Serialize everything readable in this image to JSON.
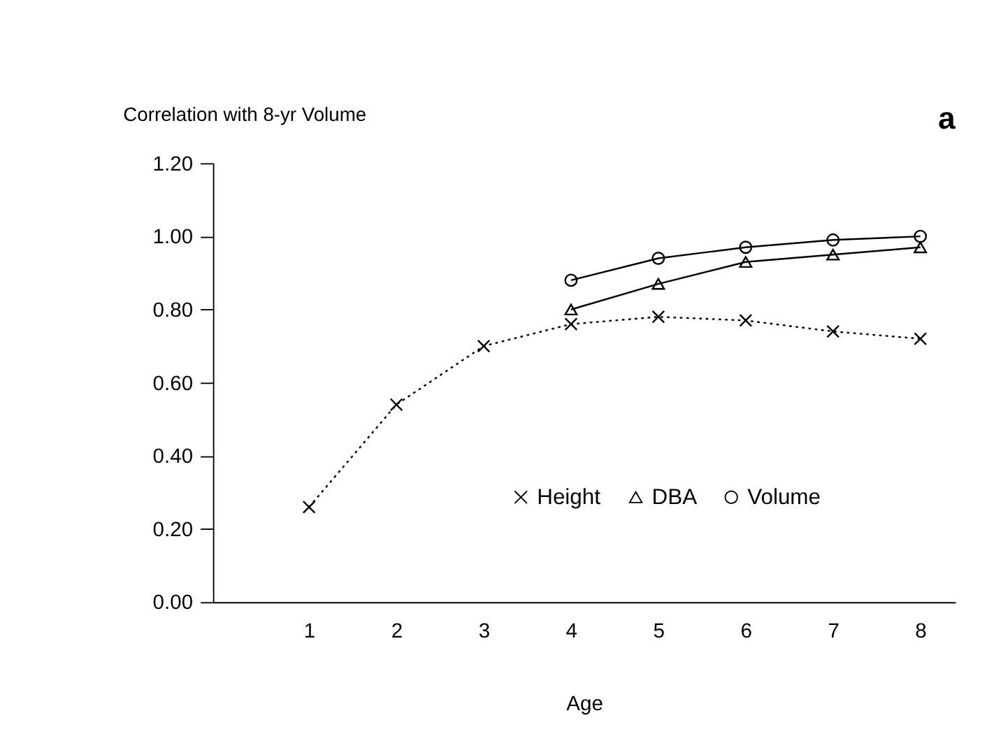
{
  "chart_data": {
    "type": "line",
    "ylabel": "Correlation with 8-yr Volume",
    "xlabel": "Age",
    "x": [
      1,
      2,
      3,
      4,
      5,
      6,
      7,
      8
    ],
    "xlim": [
      -0.1,
      8.4
    ],
    "xticks": [
      1,
      2,
      3,
      4,
      5,
      6,
      7,
      8
    ],
    "ylim": [
      0,
      1.2
    ],
    "yticks": [
      {
        "value": 0,
        "label": "0.00"
      },
      {
        "value": 0.2,
        "label": "0.20"
      },
      {
        "value": 0.4,
        "label": "0.40"
      },
      {
        "value": 0.6,
        "label": "0.60"
      },
      {
        "value": 0.8,
        "label": "0.80"
      },
      {
        "value": 1.0,
        "label": "1.00"
      },
      {
        "value": 1.2,
        "label": "1.20"
      }
    ],
    "series": [
      {
        "name": "Height",
        "color": "#000000",
        "marker": "cross",
        "line_style": "dotted",
        "values": [
          0.26,
          0.54,
          0.7,
          0.76,
          0.78,
          0.77,
          0.74,
          0.72
        ]
      },
      {
        "name": "DBA",
        "color": "#000000",
        "marker": "triangle",
        "line_style": "solid",
        "values": [
          null,
          null,
          null,
          0.8,
          0.87,
          0.93,
          0.95,
          0.97
        ]
      },
      {
        "name": "Volume",
        "color": "#000000",
        "marker": "circle",
        "line_style": "solid",
        "values": [
          null,
          null,
          null,
          0.88,
          0.94,
          0.97,
          0.99,
          1.0
        ]
      }
    ],
    "annotations": [
      "a"
    ],
    "legend": "bottom right",
    "grid": false
  }
}
